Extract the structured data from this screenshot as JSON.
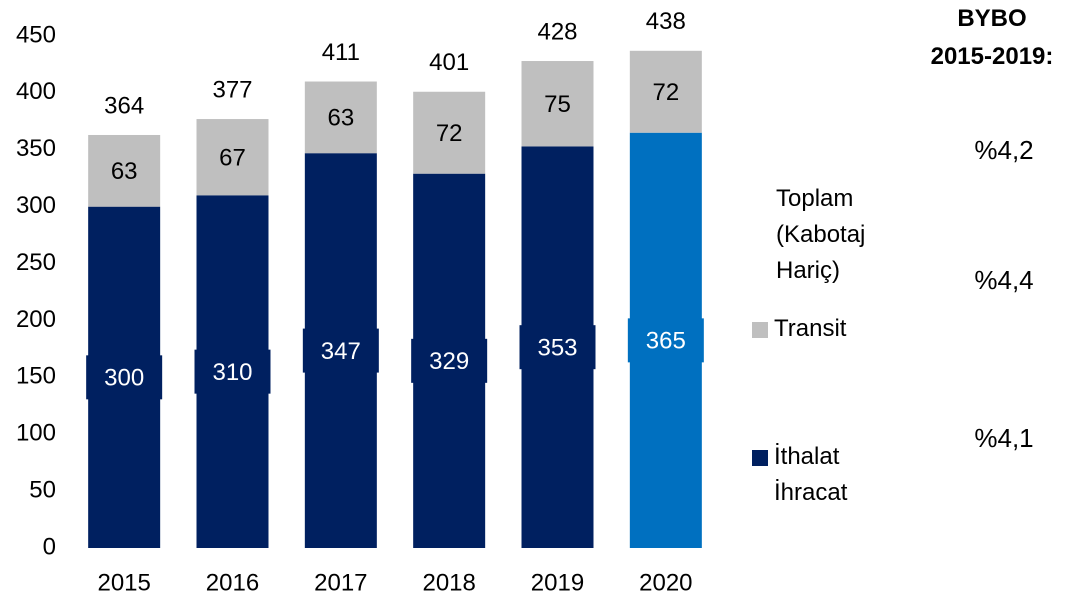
{
  "chart_data": {
    "type": "stacked_bar",
    "categories": [
      "2015",
      "2016",
      "2017",
      "2018",
      "2019",
      "2020"
    ],
    "series": [
      {
        "name": "İthalat İhracat",
        "color": "#002060",
        "colors": [
          "#002060",
          "#002060",
          "#002060",
          "#002060",
          "#002060",
          "#0070c0"
        ],
        "values": [
          300,
          310,
          347,
          329,
          353,
          365
        ]
      },
      {
        "name": "Transit",
        "color": "#bfbfbf",
        "values": [
          63,
          67,
          63,
          72,
          75,
          72
        ]
      }
    ],
    "totals": [
      364,
      377,
      411,
      401,
      428,
      438
    ],
    "total_label": "Toplam (Kabotaj Hariç)",
    "annotation_title": "BYBO 2015-2019:",
    "annotations": [
      "%4,2",
      "%4,4",
      "%4,1"
    ],
    "ylim": [
      0,
      450
    ],
    "yticks": [
      0,
      50,
      100,
      150,
      200,
      250,
      300,
      350,
      400,
      450
    ],
    "grid": false
  }
}
